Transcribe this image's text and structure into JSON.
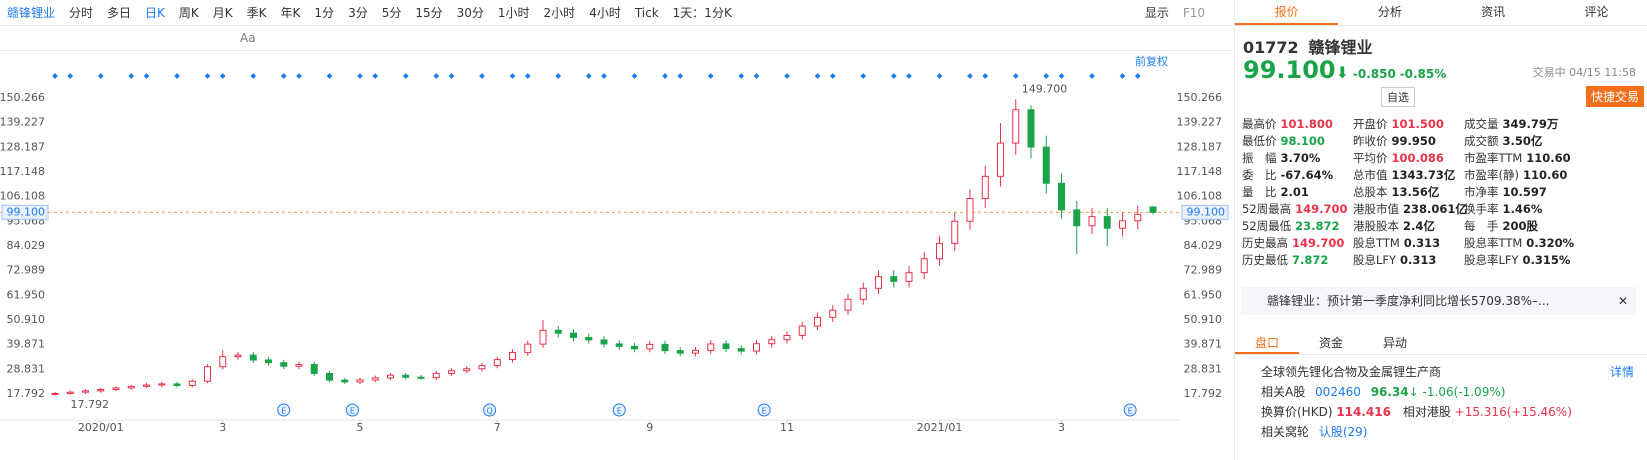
{
  "toolbar": {
    "stock": "赣锋锂业",
    "periods": [
      "分时",
      "多日",
      "日K",
      "周K",
      "月K",
      "季K",
      "年K",
      "1分",
      "3分",
      "5分",
      "15分",
      "30分",
      "1小时",
      "2小时",
      "4小时",
      "Tick"
    ],
    "active": "日K",
    "range": "1天：1分K",
    "display": "显示",
    "f10": "F10",
    "font_tool": "Aa"
  },
  "chart": {
    "type": "candlestick",
    "adjust": "前复权",
    "ylim": [
      7.05,
      162.8
    ],
    "yticks": [
      150.266,
      139.227,
      128.187,
      117.148,
      106.108,
      95.068,
      84.029,
      72.989,
      {
        "value": 61.95,
        "label": "61.950"
      },
      {
        "value": 50.91,
        "label": "50.910"
      },
      39.871,
      28.831,
      17.792
    ],
    "last_price": {
      "value": 99.1,
      "label": "99.100"
    },
    "high_mark": {
      "value": 149.7,
      "label": "149.700"
    },
    "low_mark": {
      "value": 17.792,
      "label": "17.792"
    },
    "xticks": [
      {
        "value": 3,
        "label": "2020/01"
      },
      {
        "value": 11,
        "label": "3"
      },
      {
        "value": 20,
        "label": "5"
      },
      {
        "value": 29,
        "label": "7"
      },
      {
        "value": 39,
        "label": "9"
      },
      {
        "value": 48,
        "label": "11"
      },
      {
        "value": 58,
        "label": "2021/01"
      },
      {
        "value": 66,
        "label": "3"
      }
    ],
    "events": [
      "E",
      "E",
      "Q",
      "E",
      "E",
      "E"
    ],
    "up_color": "#e8334b",
    "down_color": "#1ba34a",
    "candles": [
      [
        17.8,
        18.7,
        17.3,
        18.0
      ],
      [
        18.0,
        19.3,
        17.5,
        18.6
      ],
      [
        18.6,
        19.9,
        17.792,
        19.2
      ],
      [
        19.2,
        20.6,
        18.4,
        19.8
      ],
      [
        19.8,
        21.3,
        19.0,
        20.5
      ],
      [
        20.5,
        22.0,
        19.7,
        21.2
      ],
      [
        21.2,
        22.7,
        20.4,
        21.8
      ],
      [
        21.8,
        23.2,
        20.9,
        22.3
      ],
      [
        22.3,
        23.2,
        20.7,
        21.6
      ],
      [
        21.6,
        24.4,
        20.7,
        23.5
      ],
      [
        23.5,
        31.2,
        22.6,
        30.0
      ],
      [
        30.0,
        37.4,
        28.8,
        34.5
      ],
      [
        34.5,
        36.6,
        33.1,
        35.2
      ],
      [
        35.2,
        36.6,
        31.7,
        33.0
      ],
      [
        33.0,
        34.3,
        30.5,
        31.8
      ],
      [
        31.8,
        33.1,
        29.0,
        30.2
      ],
      [
        30.2,
        32.2,
        29.0,
        31.0
      ],
      [
        31.0,
        32.2,
        25.9,
        27.0
      ],
      [
        27.0,
        28.1,
        23.0,
        24.0
      ],
      [
        24.0,
        25.0,
        22.3,
        23.2
      ],
      [
        23.2,
        25.1,
        22.3,
        24.1
      ],
      [
        24.1,
        26.0,
        23.1,
        25.0
      ],
      [
        25.0,
        27.2,
        24.0,
        26.2
      ],
      [
        26.2,
        27.2,
        24.3,
        25.3
      ],
      [
        25.3,
        26.3,
        24.1,
        25.1
      ],
      [
        25.1,
        28.1,
        24.1,
        27.0
      ],
      [
        27.0,
        29.3,
        25.9,
        28.2
      ],
      [
        28.2,
        30.3,
        27.1,
        29.1
      ],
      [
        29.1,
        31.7,
        27.9,
        30.5
      ],
      [
        30.5,
        34.5,
        29.3,
        33.2
      ],
      [
        33.2,
        37.9,
        31.9,
        36.4
      ],
      [
        36.4,
        41.7,
        34.9,
        40.1
      ],
      [
        40.1,
        50.9,
        38.5,
        46.3
      ],
      [
        46.3,
        48.2,
        43.2,
        45.0
      ],
      [
        45.0,
        46.8,
        41.4,
        43.1
      ],
      [
        43.1,
        44.8,
        40.3,
        42.0
      ],
      [
        42.0,
        43.7,
        38.6,
        40.2
      ],
      [
        40.2,
        41.8,
        37.5,
        39.1
      ],
      [
        39.1,
        40.7,
        36.5,
        38.0
      ],
      [
        38.0,
        41.6,
        36.5,
        40.0
      ],
      [
        40.0,
        41.6,
        35.7,
        37.2
      ],
      [
        37.2,
        38.7,
        34.7,
        36.1
      ],
      [
        36.1,
        38.8,
        34.7,
        37.3
      ],
      [
        37.3,
        41.8,
        35.8,
        40.2
      ],
      [
        40.2,
        41.8,
        36.6,
        38.1
      ],
      [
        38.1,
        39.6,
        35.5,
        37.0
      ],
      [
        37.0,
        41.9,
        35.5,
        40.3
      ],
      [
        40.3,
        43.8,
        38.7,
        42.1
      ],
      [
        42.1,
        45.8,
        40.4,
        44.0
      ],
      [
        44.0,
        50.1,
        42.2,
        48.2
      ],
      [
        48.2,
        54.2,
        46.3,
        52.1
      ],
      [
        52.1,
        57.5,
        50.0,
        55.3
      ],
      [
        55.3,
        62.6,
        53.1,
        60.2
      ],
      [
        60.2,
        67.7,
        57.8,
        65.1
      ],
      [
        65.1,
        73.1,
        62.5,
        70.3
      ],
      [
        70.3,
        73.1,
        65.5,
        68.2
      ],
      [
        68.2,
        75.0,
        65.5,
        72.1
      ],
      [
        72.1,
        81.4,
        69.2,
        78.3
      ],
      [
        78.3,
        88.6,
        75.2,
        85.2
      ],
      [
        85.2,
        98.9,
        81.8,
        95.1
      ],
      [
        95.1,
        109.5,
        91.3,
        105.3
      ],
      [
        105.3,
        119.8,
        101.1,
        115.2
      ],
      [
        115.2,
        139.0,
        110.6,
        130.1
      ],
      [
        130.1,
        149.7,
        124.9,
        145.0
      ],
      [
        145.0,
        147.0,
        123.2,
        128.3
      ],
      [
        128.3,
        133.4,
        107.6,
        112.1
      ],
      [
        112.1,
        116.6,
        96.2,
        100.2
      ],
      [
        100.2,
        104.2,
        80.4,
        93.1
      ],
      [
        93.1,
        101.1,
        89.4,
        97.2
      ],
      [
        97.2,
        101.1,
        84.0,
        92.0
      ],
      [
        92.0,
        99.1,
        88.3,
        95.3
      ],
      [
        95.3,
        102.1,
        91.5,
        98.2
      ],
      [
        101.5,
        101.8,
        98.1,
        99.1
      ]
    ]
  },
  "panel": {
    "tabs": [
      "报价",
      "分析",
      "资讯",
      "评论"
    ],
    "code": "01772",
    "name": "赣锋锂业",
    "price": "99.100",
    "change": "-0.850",
    "pct": "-0.85%",
    "status": "交易中 04/15 11:58",
    "watch": "自选",
    "trade": "快捷交易",
    "stats": [
      [
        {
          "label": "最高价",
          "value": "101.800",
          "tone": "up"
        },
        {
          "label": "开盘价",
          "value": "101.500",
          "tone": "up"
        },
        {
          "label": "成交量",
          "value": "349.79万"
        }
      ],
      [
        {
          "label": "最低价",
          "value": "98.100",
          "tone": "down"
        },
        {
          "label": "昨收价",
          "value": "99.950"
        },
        {
          "label": "成交额",
          "value": "3.50亿"
        }
      ],
      [
        {
          "label": "振　幅",
          "value": "3.70%"
        },
        {
          "label": "平均价",
          "value": "100.086",
          "tone": "up"
        },
        {
          "label": "市盈率TTM",
          "value": "110.60"
        }
      ],
      [
        {
          "label": "委　比",
          "value": "-67.64%"
        },
        {
          "label": "总市值",
          "value": "1343.73亿"
        },
        {
          "label": "市盈率(静)",
          "value": "110.60"
        }
      ],
      [
        {
          "label": "量　比",
          "value": "2.01"
        },
        {
          "label": "总股本",
          "value": "13.56亿"
        },
        {
          "label": "市净率",
          "value": "10.597"
        }
      ],
      [
        {
          "label": "52周最高",
          "value": "149.700",
          "tone": "up"
        },
        {
          "label": "港股市值",
          "value": "238.061亿"
        },
        {
          "label": "换手率",
          "value": "1.46%"
        }
      ],
      [
        {
          "label": "52周最低",
          "value": "23.872",
          "tone": "down"
        },
        {
          "label": "港股股本",
          "value": "2.4亿"
        },
        {
          "label": "每　手",
          "value": "200股"
        }
      ],
      [
        {
          "label": "历史最高",
          "value": "149.700",
          "tone": "up"
        },
        {
          "label": "股息TTM",
          "value": "0.313"
        },
        {
          "label": "股息率TTM",
          "value": "0.320%"
        }
      ],
      [
        {
          "label": "历史最低",
          "value": "7.872",
          "tone": "down"
        },
        {
          "label": "股息LFY",
          "value": "0.313"
        },
        {
          "label": "股息率LFY",
          "value": "0.315%"
        }
      ]
    ],
    "news": "赣锋锂业：预计第一季度净利同比增长5709.38%–...",
    "subtabs": [
      "盘口",
      "资金",
      "异动"
    ],
    "desc": "全球领先锂化合物及金属锂生产商",
    "detail": "详情",
    "a_label": "相关A股",
    "a_code": "002460",
    "a_price": "96.34",
    "a_change": "-1.06(-1.09%)",
    "hkd_label": "换算价(HKD)",
    "hkd_price": "114.416",
    "rel_label": "相对港股",
    "rel_value": "+15.316(+15.46%)",
    "warrant_label": "相关窝轮",
    "warrant_value": "认股(29)"
  }
}
